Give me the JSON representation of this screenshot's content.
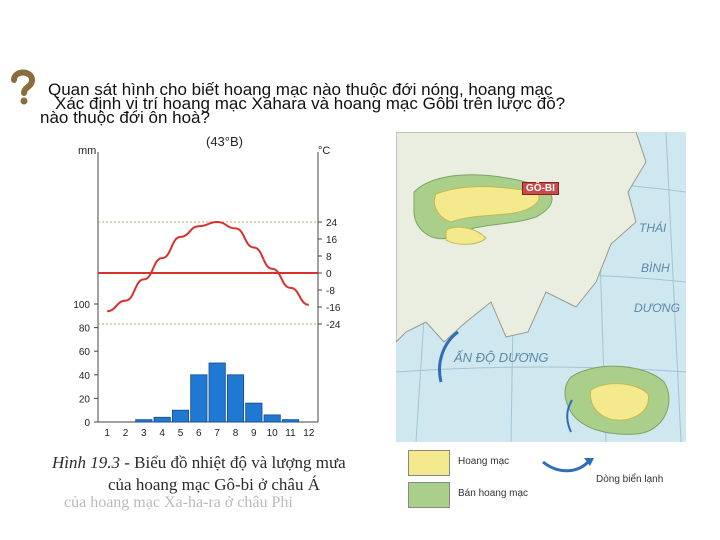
{
  "question": {
    "line1": "Quan sát hình cho biết hoang mạc nào thuộc đới nóng, hoang mạc",
    "line2": "Xác định vị trí hoang mạc Xahara và hoang mạc Gôbi trên lược đồ?",
    "line3": "nào thuộc đới ôn hoà?"
  },
  "chart_data": {
    "type": "bar",
    "title": "(43°B)",
    "left_axis_unit": "mm",
    "right_axis_unit": "°C",
    "categories": [
      "1",
      "2",
      "3",
      "4",
      "5",
      "6",
      "7",
      "8",
      "9",
      "10",
      "11",
      "12"
    ],
    "left_ticks": [
      "100",
      "80",
      "60",
      "40",
      "20",
      "0"
    ],
    "right_ticks": [
      "24",
      "16",
      "8",
      "0",
      "-8",
      "-16",
      "-24"
    ],
    "series": [
      {
        "type": "bar",
        "values": [
          0,
          0,
          2,
          4,
          10,
          40,
          50,
          40,
          16,
          6,
          2,
          0
        ]
      },
      {
        "type": "line",
        "values": [
          -18,
          -13,
          -3,
          7,
          17,
          22,
          24,
          21,
          12,
          2,
          -7,
          -15
        ]
      }
    ],
    "ylim_left": [
      0,
      100
    ],
    "ylim_right": [
      -24,
      24
    ]
  },
  "caption": {
    "prefix": "Hình 19.3",
    "text1": " - Biểu đồ nhiệt độ và lượng mưa",
    "text2": "của hoang mạc Gô-bi ở châu Á",
    "ghost": "của hoang mạc Xa-ha-ra ở châu Phi"
  },
  "map": {
    "gobi": "GÔ-BI",
    "pacific_1": "THÁI",
    "pacific_2": "BÌNH",
    "pacific_3": "DƯƠNG",
    "indian": "ẤN ĐỘ DƯƠNG",
    "legend": {
      "desert": "Hoang mạc",
      "semi_desert": "Bán hoang mạc",
      "cold_current": "Dòng biển lạnh"
    },
    "colors": {
      "desert": "#f4e98c",
      "semi_desert": "#a9cf8a",
      "sea": "#cfe7ef"
    }
  }
}
